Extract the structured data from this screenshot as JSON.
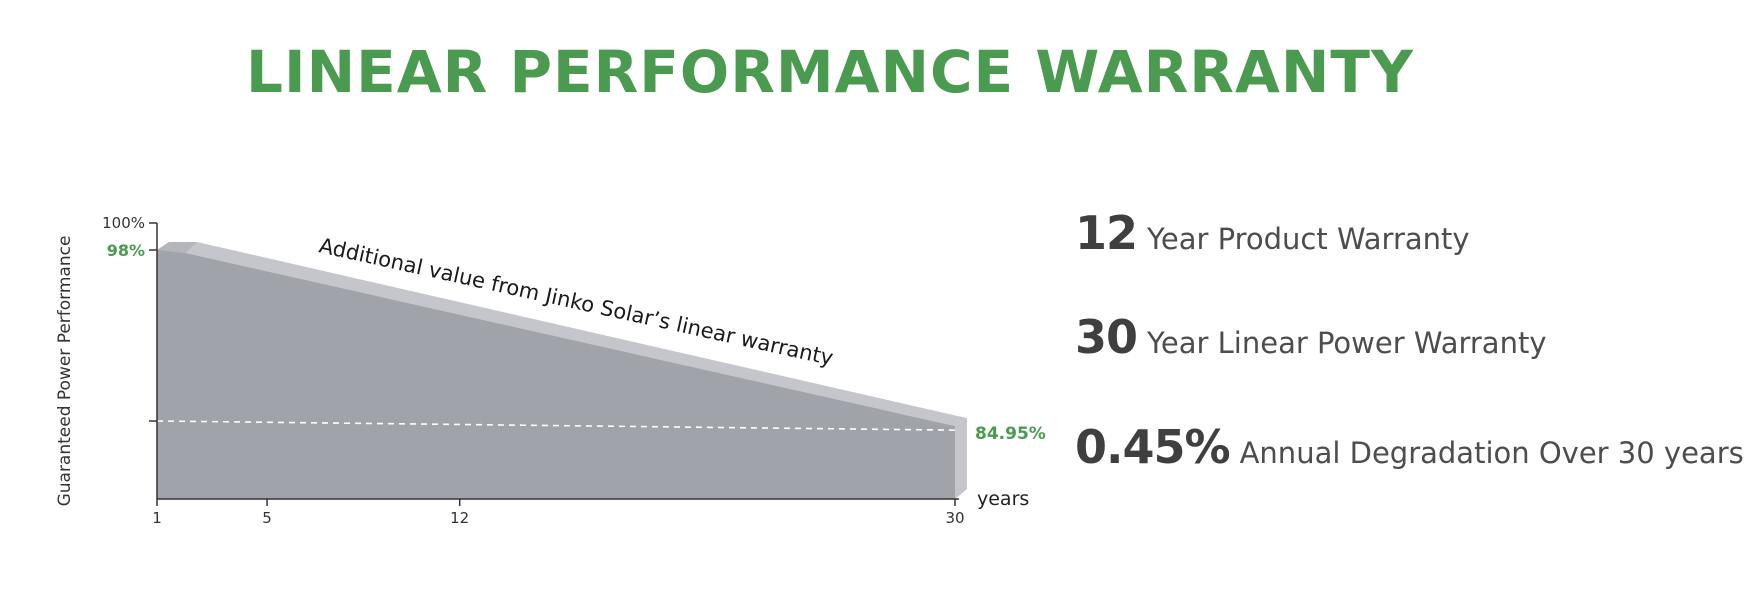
{
  "title": "LINEAR PERFORMANCE WARRANTY",
  "chart_data": {
    "type": "area",
    "title": "",
    "ylabel": "Guaranteed Power Performance",
    "xlabel": "years",
    "x": [
      1,
      30
    ],
    "values": [
      98,
      84.95
    ],
    "xticks": [
      1,
      5,
      12,
      30
    ],
    "ytick_labels": [
      "100%",
      "98%"
    ],
    "end_label": "84.95%",
    "band_label": "Additional value from Jinko Solar’s linear warranty",
    "baseline_style": "dashed",
    "grid": false,
    "colors": {
      "area": "#a0a3aa",
      "band": "#c5c6cb",
      "highlight": "#4a9a4f",
      "axis": "#333333"
    }
  },
  "warranties": [
    {
      "value": "12",
      "text": "Year Product Warranty"
    },
    {
      "value": "30",
      "text": "Year Linear Power Warranty"
    },
    {
      "value": "0.45%",
      "text": "Annual Degradation Over 30 years"
    }
  ]
}
